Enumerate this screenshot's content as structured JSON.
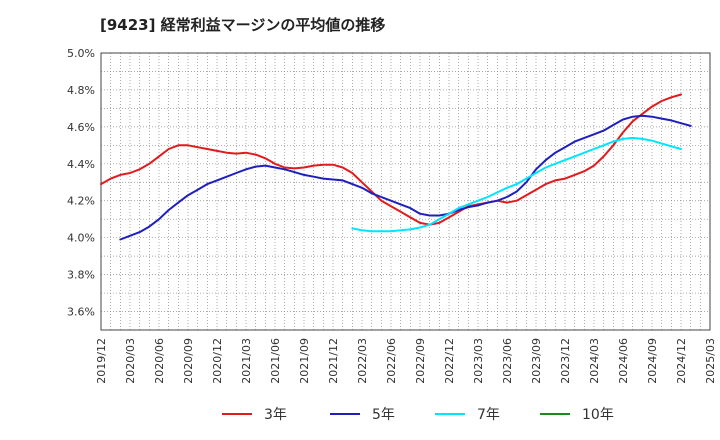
{
  "chart_data": {
    "type": "line",
    "title": "[9423]  経常利益マージンの平均値の推移",
    "xlabel": "",
    "ylabel": "",
    "ylim": [
      3.5,
      5.0
    ],
    "y_ticks": [
      "3.6%",
      "3.8%",
      "4.0%",
      "4.2%",
      "4.4%",
      "4.6%",
      "4.8%",
      "5.0%"
    ],
    "x_ticks": [
      "2019/12",
      "2020/03",
      "2020/06",
      "2020/09",
      "2020/12",
      "2021/03",
      "2021/06",
      "2021/09",
      "2021/12",
      "2022/03",
      "2022/06",
      "2022/09",
      "2022/12",
      "2023/03",
      "2023/06",
      "2023/09",
      "2023/12",
      "2024/03",
      "2024/06",
      "2024/09",
      "2024/12",
      "2025/03"
    ],
    "grid": true,
    "legend_position": "bottom",
    "series": [
      {
        "name": "3年",
        "color": "#e31a1c",
        "points": [
          [
            "2019/12",
            4.29
          ],
          [
            "2020/01",
            4.32
          ],
          [
            "2020/02",
            4.34
          ],
          [
            "2020/03",
            4.35
          ],
          [
            "2020/04",
            4.37
          ],
          [
            "2020/05",
            4.4
          ],
          [
            "2020/06",
            4.44
          ],
          [
            "2020/07",
            4.48
          ],
          [
            "2020/08",
            4.5
          ],
          [
            "2020/09",
            4.5
          ],
          [
            "2020/10",
            4.49
          ],
          [
            "2020/11",
            4.48
          ],
          [
            "2020/12",
            4.47
          ],
          [
            "2021/01",
            4.46
          ],
          [
            "2021/02",
            4.455
          ],
          [
            "2021/03",
            4.46
          ],
          [
            "2021/04",
            4.45
          ],
          [
            "2021/05",
            4.43
          ],
          [
            "2021/06",
            4.4
          ],
          [
            "2021/07",
            4.38
          ],
          [
            "2021/08",
            4.375
          ],
          [
            "2021/09",
            4.38
          ],
          [
            "2021/10",
            4.39
          ],
          [
            "2021/11",
            4.395
          ],
          [
            "2021/12",
            4.395
          ],
          [
            "2022/01",
            4.38
          ],
          [
            "2022/02",
            4.35
          ],
          [
            "2022/03",
            4.3
          ],
          [
            "2022/04",
            4.25
          ],
          [
            "2022/05",
            4.2
          ],
          [
            "2022/06",
            4.17
          ],
          [
            "2022/07",
            4.14
          ],
          [
            "2022/08",
            4.11
          ],
          [
            "2022/09",
            4.08
          ],
          [
            "2022/10",
            4.07
          ],
          [
            "2022/11",
            4.08
          ],
          [
            "2022/12",
            4.11
          ],
          [
            "2023/01",
            4.14
          ],
          [
            "2023/02",
            4.17
          ],
          [
            "2023/03",
            4.18
          ],
          [
            "2023/04",
            4.19
          ],
          [
            "2023/05",
            4.2
          ],
          [
            "2023/06",
            4.19
          ],
          [
            "2023/07",
            4.2
          ],
          [
            "2023/08",
            4.23
          ],
          [
            "2023/09",
            4.26
          ],
          [
            "2023/10",
            4.29
          ],
          [
            "2023/11",
            4.31
          ],
          [
            "2023/12",
            4.32
          ],
          [
            "2024/01",
            4.34
          ],
          [
            "2024/02",
            4.36
          ],
          [
            "2024/03",
            4.39
          ],
          [
            "2024/04",
            4.44
          ],
          [
            "2024/05",
            4.5
          ],
          [
            "2024/06",
            4.57
          ],
          [
            "2024/07",
            4.63
          ],
          [
            "2024/08",
            4.67
          ],
          [
            "2024/09",
            4.71
          ],
          [
            "2024/10",
            4.74
          ],
          [
            "2024/11",
            4.76
          ],
          [
            "2024/12",
            4.775
          ]
        ]
      },
      {
        "name": "5年",
        "color": "#1f1fbf",
        "points": [
          [
            "2020/02",
            3.99
          ],
          [
            "2020/03",
            4.01
          ],
          [
            "2020/04",
            4.03
          ],
          [
            "2020/05",
            4.06
          ],
          [
            "2020/06",
            4.1
          ],
          [
            "2020/07",
            4.15
          ],
          [
            "2020/08",
            4.19
          ],
          [
            "2020/09",
            4.23
          ],
          [
            "2020/10",
            4.26
          ],
          [
            "2020/11",
            4.29
          ],
          [
            "2020/12",
            4.31
          ],
          [
            "2021/01",
            4.33
          ],
          [
            "2021/02",
            4.35
          ],
          [
            "2021/03",
            4.37
          ],
          [
            "2021/04",
            4.385
          ],
          [
            "2021/05",
            4.39
          ],
          [
            "2021/06",
            4.38
          ],
          [
            "2021/07",
            4.37
          ],
          [
            "2021/08",
            4.355
          ],
          [
            "2021/09",
            4.34
          ],
          [
            "2021/10",
            4.33
          ],
          [
            "2021/11",
            4.32
          ],
          [
            "2021/12",
            4.315
          ],
          [
            "2022/01",
            4.31
          ],
          [
            "2022/02",
            4.29
          ],
          [
            "2022/03",
            4.27
          ],
          [
            "2022/04",
            4.24
          ],
          [
            "2022/05",
            4.22
          ],
          [
            "2022/06",
            4.2
          ],
          [
            "2022/07",
            4.18
          ],
          [
            "2022/08",
            4.16
          ],
          [
            "2022/09",
            4.13
          ],
          [
            "2022/10",
            4.12
          ],
          [
            "2022/11",
            4.12
          ],
          [
            "2022/12",
            4.13
          ],
          [
            "2023/01",
            4.15
          ],
          [
            "2023/02",
            4.165
          ],
          [
            "2023/03",
            4.175
          ],
          [
            "2023/04",
            4.19
          ],
          [
            "2023/05",
            4.2
          ],
          [
            "2023/06",
            4.22
          ],
          [
            "2023/07",
            4.25
          ],
          [
            "2023/08",
            4.3
          ],
          [
            "2023/09",
            4.37
          ],
          [
            "2023/10",
            4.42
          ],
          [
            "2023/11",
            4.46
          ],
          [
            "2023/12",
            4.49
          ],
          [
            "2024/01",
            4.52
          ],
          [
            "2024/02",
            4.54
          ],
          [
            "2024/03",
            4.56
          ],
          [
            "2024/04",
            4.58
          ],
          [
            "2024/05",
            4.61
          ],
          [
            "2024/06",
            4.64
          ],
          [
            "2024/07",
            4.655
          ],
          [
            "2024/08",
            4.66
          ],
          [
            "2024/09",
            4.655
          ],
          [
            "2024/10",
            4.645
          ],
          [
            "2024/11",
            4.635
          ],
          [
            "2024/12",
            4.62
          ],
          [
            "2025/01",
            4.605
          ]
        ]
      },
      {
        "name": "7年",
        "color": "#00e5ff",
        "points": [
          [
            "2022/02",
            4.05
          ],
          [
            "2022/03",
            4.04
          ],
          [
            "2022/04",
            4.035
          ],
          [
            "2022/05",
            4.035
          ],
          [
            "2022/06",
            4.035
          ],
          [
            "2022/07",
            4.04
          ],
          [
            "2022/08",
            4.045
          ],
          [
            "2022/09",
            4.055
          ],
          [
            "2022/10",
            4.07
          ],
          [
            "2022/11",
            4.1
          ],
          [
            "2022/12",
            4.13
          ],
          [
            "2023/01",
            4.16
          ],
          [
            "2023/02",
            4.18
          ],
          [
            "2023/03",
            4.2
          ],
          [
            "2023/04",
            4.22
          ],
          [
            "2023/05",
            4.245
          ],
          [
            "2023/06",
            4.27
          ],
          [
            "2023/07",
            4.29
          ],
          [
            "2023/08",
            4.32
          ],
          [
            "2023/09",
            4.35
          ],
          [
            "2023/10",
            4.38
          ],
          [
            "2023/11",
            4.4
          ],
          [
            "2023/12",
            4.42
          ],
          [
            "2024/01",
            4.44
          ],
          [
            "2024/02",
            4.46
          ],
          [
            "2024/03",
            4.48
          ],
          [
            "2024/04",
            4.5
          ],
          [
            "2024/05",
            4.52
          ],
          [
            "2024/06",
            4.535
          ],
          [
            "2024/07",
            4.54
          ],
          [
            "2024/08",
            4.535
          ],
          [
            "2024/09",
            4.525
          ],
          [
            "2024/10",
            4.51
          ],
          [
            "2024/11",
            4.495
          ],
          [
            "2024/12",
            4.48
          ]
        ]
      },
      {
        "name": "10年",
        "color": "#1a8a1a",
        "points": []
      }
    ]
  }
}
